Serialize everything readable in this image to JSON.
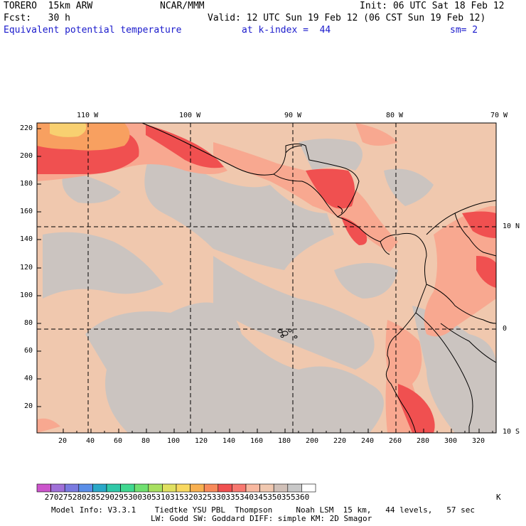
{
  "header": {
    "model": "TORERO  15km ARW",
    "center": "NCAR/MMM",
    "init": "Init: 06 UTC Sat 18 Feb 12",
    "fcst": "Fcst:   30 h",
    "valid": "Valid: 12 UTC Sun 19 Feb 12 (06 CST Sun 19 Feb 12)",
    "field": "Equivalent potential temperature",
    "level": "at k-index =  44",
    "smooth": "sm= 2"
  },
  "axes": {
    "top_lon": [
      "110 W",
      "100 W",
      "90 W",
      "80 W",
      "70 W"
    ],
    "right_lat": [
      "10 N",
      "0",
      "10 S"
    ],
    "x_ticks": [
      "20",
      "40",
      "60",
      "80",
      "100",
      "120",
      "140",
      "160",
      "180",
      "200",
      "220",
      "240",
      "260",
      "280",
      "300",
      "320"
    ],
    "y_ticks": [
      "220",
      "200",
      "180",
      "160",
      "140",
      "120",
      "100",
      "80",
      "60",
      "40",
      "20"
    ]
  },
  "colorbar": {
    "labels": [
      "270",
      "275",
      "280",
      "285",
      "290",
      "295",
      "300",
      "305",
      "310",
      "315",
      "320",
      "325",
      "330",
      "335",
      "340",
      "345",
      "350",
      "355",
      "360"
    ],
    "unit": "K",
    "colors": [
      "#cc55cc",
      "#a070d8",
      "#7a7ae0",
      "#5a8ee8",
      "#2aa8c8",
      "#30c8a8",
      "#40d890",
      "#70e070",
      "#a8e060",
      "#e0e060",
      "#f8d860",
      "#f8b050",
      "#f88a5a",
      "#f05050",
      "#f87870",
      "#f8b8a0",
      "#f0c8b0",
      "#d0c0b8",
      "#c8c8c8",
      "#ffffff"
    ]
  },
  "footer": {
    "line1": "Model Info: V3.3.1    Tiedtke YSU PBL  Thompson     Noah LSM  15 km,   44 levels,   57 sec",
    "line2": "LW: Godd SW: Goddard DIFF: simple KM: 2D Smagor"
  },
  "map_colors": {
    "background_tan": "#f0c8ae",
    "gray": "#cbc4c0",
    "salmon": "#f8a890",
    "red": "#f05050",
    "orange": "#f8a060",
    "yellow": "#f8d070"
  }
}
